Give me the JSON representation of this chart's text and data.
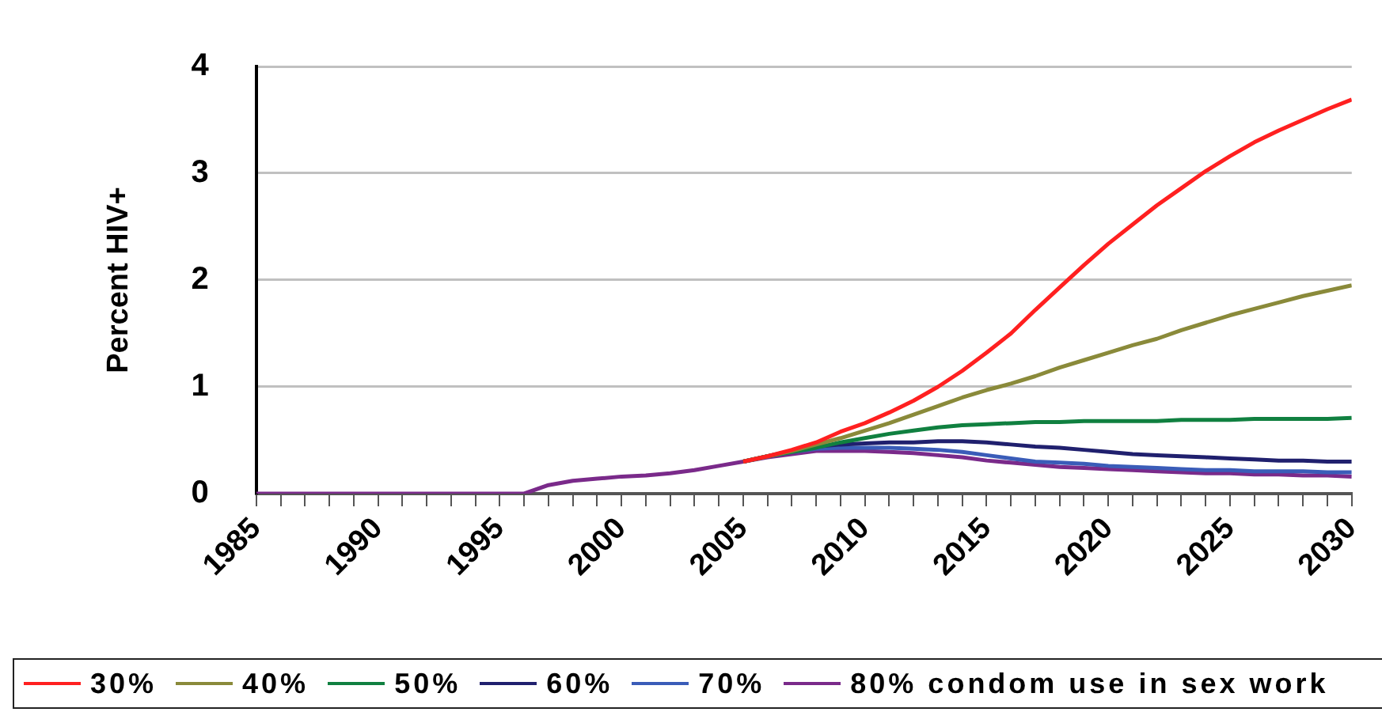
{
  "chart_data": {
    "type": "line",
    "ylabel": "Percent HIV+",
    "x": [
      1985,
      1986,
      1987,
      1988,
      1989,
      1990,
      1991,
      1992,
      1993,
      1994,
      1995,
      1996,
      1997,
      1998,
      1999,
      2000,
      2001,
      2002,
      2003,
      2004,
      2005,
      2006,
      2007,
      2008,
      2009,
      2010,
      2011,
      2012,
      2013,
      2014,
      2015,
      2016,
      2017,
      2018,
      2019,
      2020,
      2021,
      2022,
      2023,
      2024,
      2025,
      2026,
      2027,
      2028,
      2029,
      2030
    ],
    "series": [
      {
        "name": "30%",
        "color": "#ff2020",
        "values": [
          null,
          null,
          null,
          null,
          null,
          null,
          null,
          null,
          null,
          null,
          null,
          null,
          null,
          null,
          null,
          null,
          null,
          null,
          null,
          null,
          0.3,
          0.35,
          0.41,
          0.48,
          0.58,
          0.66,
          0.76,
          0.87,
          1.0,
          1.15,
          1.32,
          1.5,
          1.72,
          1.93,
          2.14,
          2.34,
          2.52,
          2.7,
          2.86,
          3.02,
          3.16,
          3.29,
          3.4,
          3.5,
          3.6,
          3.69
        ]
      },
      {
        "name": "40%",
        "color": "#8a8a3a",
        "values": [
          null,
          null,
          null,
          null,
          null,
          null,
          null,
          null,
          null,
          null,
          null,
          null,
          null,
          null,
          null,
          null,
          null,
          null,
          null,
          null,
          0.3,
          0.35,
          0.4,
          0.46,
          0.52,
          0.59,
          0.66,
          0.74,
          0.82,
          0.9,
          0.97,
          1.03,
          1.1,
          1.18,
          1.25,
          1.32,
          1.39,
          1.45,
          1.53,
          1.6,
          1.67,
          1.73,
          1.79,
          1.85,
          1.9,
          1.95
        ]
      },
      {
        "name": "50%",
        "color": "#108040",
        "values": [
          null,
          null,
          null,
          null,
          null,
          null,
          null,
          null,
          null,
          null,
          null,
          null,
          null,
          null,
          null,
          null,
          null,
          null,
          null,
          null,
          0.3,
          0.35,
          0.39,
          0.43,
          0.48,
          0.52,
          0.56,
          0.59,
          0.62,
          0.64,
          0.65,
          0.66,
          0.67,
          0.67,
          0.68,
          0.68,
          0.68,
          0.68,
          0.69,
          0.69,
          0.69,
          0.7,
          0.7,
          0.7,
          0.7,
          0.71
        ]
      },
      {
        "name": "60%",
        "color": "#20206e",
        "values": [
          null,
          null,
          null,
          null,
          null,
          null,
          null,
          null,
          null,
          null,
          null,
          null,
          null,
          null,
          null,
          null,
          null,
          null,
          null,
          null,
          0.3,
          0.35,
          0.4,
          0.44,
          0.46,
          0.47,
          0.48,
          0.48,
          0.49,
          0.49,
          0.48,
          0.46,
          0.44,
          0.43,
          0.41,
          0.39,
          0.37,
          0.36,
          0.35,
          0.34,
          0.33,
          0.32,
          0.31,
          0.31,
          0.3,
          0.3
        ]
      },
      {
        "name": "70%",
        "color": "#3a5cb8",
        "values": [
          null,
          null,
          null,
          null,
          null,
          null,
          null,
          null,
          null,
          null,
          null,
          null,
          null,
          null,
          null,
          null,
          null,
          null,
          null,
          null,
          0.3,
          0.35,
          0.39,
          0.42,
          0.43,
          0.43,
          0.43,
          0.42,
          0.41,
          0.39,
          0.36,
          0.33,
          0.3,
          0.29,
          0.28,
          0.26,
          0.25,
          0.24,
          0.23,
          0.22,
          0.22,
          0.21,
          0.21,
          0.21,
          0.2,
          0.2
        ]
      },
      {
        "name": "80% condom use in sex work",
        "color": "#7a2a8a",
        "values": [
          0,
          0,
          0,
          0,
          0,
          0,
          0,
          0,
          0,
          0,
          0,
          0,
          0.08,
          0.12,
          0.14,
          0.16,
          0.17,
          0.19,
          0.22,
          0.26,
          0.3,
          0.34,
          0.37,
          0.4,
          0.4,
          0.4,
          0.39,
          0.38,
          0.36,
          0.34,
          0.31,
          0.29,
          0.27,
          0.25,
          0.24,
          0.23,
          0.22,
          0.21,
          0.2,
          0.19,
          0.19,
          0.18,
          0.18,
          0.17,
          0.17,
          0.16
        ]
      }
    ],
    "xlim": [
      1985,
      2030
    ],
    "xticks": [
      1985,
      {
        "value": 1986,
        "label": null
      },
      {
        "value": 1987,
        "label": null
      },
      {
        "value": 1988,
        "label": null
      },
      {
        "value": 1989,
        "label": null
      },
      1990,
      {
        "value": 1991,
        "label": null
      },
      {
        "value": 1992,
        "label": null
      },
      {
        "value": 1993,
        "label": null
      },
      {
        "value": 1994,
        "label": null
      },
      1995,
      {
        "value": 1996,
        "label": null
      },
      {
        "value": 1997,
        "label": null
      },
      {
        "value": 1998,
        "label": null
      },
      {
        "value": 1999,
        "label": null
      },
      2000,
      {
        "value": 2001,
        "label": null
      },
      {
        "value": 2002,
        "label": null
      },
      {
        "value": 2003,
        "label": null
      },
      {
        "value": 2004,
        "label": null
      },
      2005,
      {
        "value": 2006,
        "label": null
      },
      {
        "value": 2007,
        "label": null
      },
      {
        "value": 2008,
        "label": null
      },
      {
        "value": 2009,
        "label": null
      },
      2010,
      {
        "value": 2011,
        "label": null
      },
      {
        "value": 2012,
        "label": null
      },
      {
        "value": 2013,
        "label": null
      },
      {
        "value": 2014,
        "label": null
      },
      2015,
      {
        "value": 2016,
        "label": null
      },
      {
        "value": 2017,
        "label": null
      },
      {
        "value": 2018,
        "label": null
      },
      {
        "value": 2019,
        "label": null
      },
      2020,
      {
        "value": 2021,
        "label": null
      },
      {
        "value": 2022,
        "label": null
      },
      {
        "value": 2023,
        "label": null
      },
      {
        "value": 2024,
        "label": null
      },
      2025,
      {
        "value": 2026,
        "label": null
      },
      {
        "value": 2027,
        "label": null
      },
      {
        "value": 2028,
        "label": null
      },
      {
        "value": 2029,
        "label": null
      },
      2030
    ],
    "ylim": [
      0,
      4
    ],
    "yticks": [
      0,
      1,
      2,
      3,
      4
    ],
    "grid": "y",
    "legend": "bottom",
    "marker": "none",
    "line_style": "solid"
  }
}
